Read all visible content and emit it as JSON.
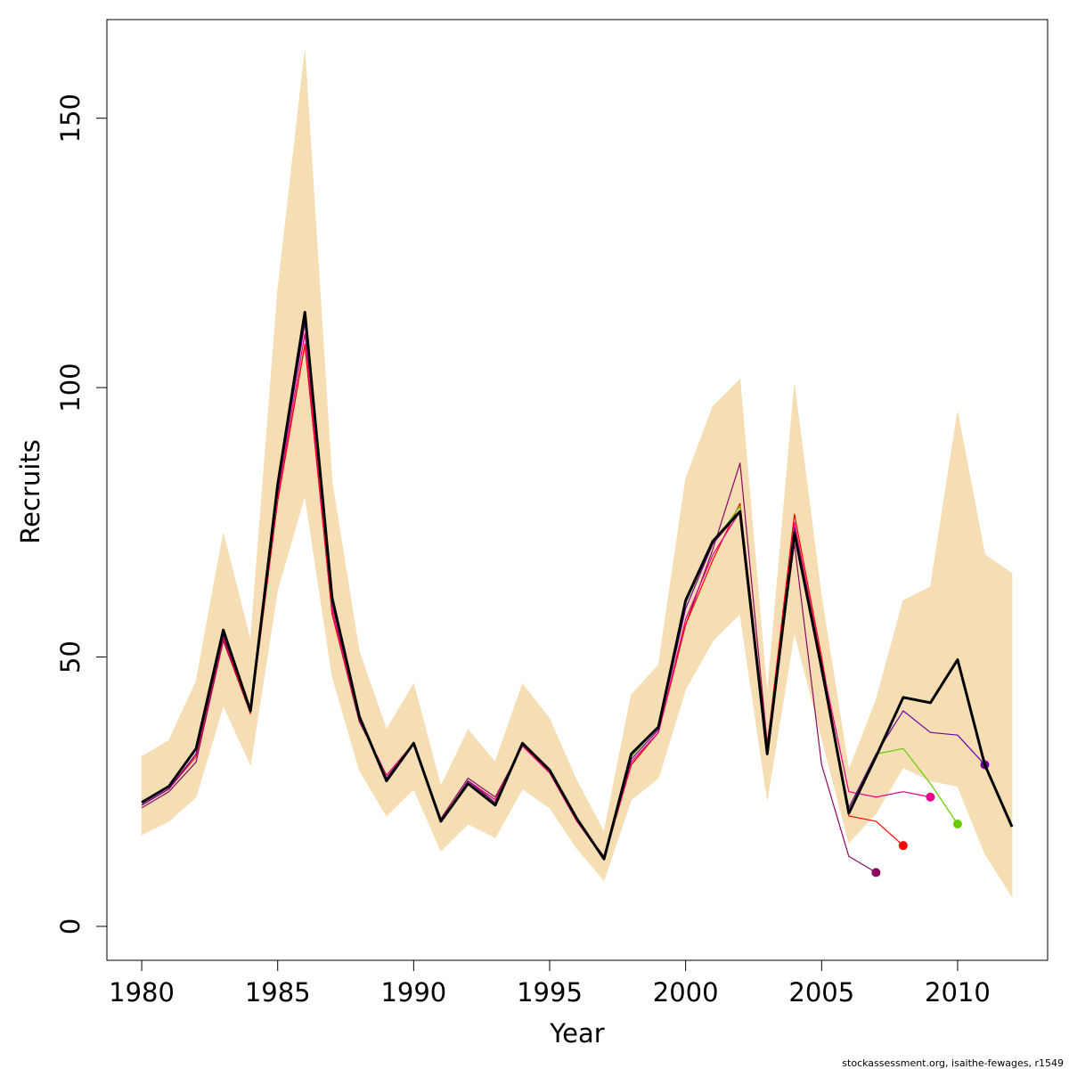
{
  "chart_data": {
    "type": "line",
    "x_label": "Year",
    "y_label": "Recruits",
    "footnote": "stockassessment.org, isaithe-fewages, r1549",
    "x": [
      1980,
      1981,
      1982,
      1983,
      1984,
      1985,
      1986,
      1987,
      1988,
      1989,
      1990,
      1991,
      1992,
      1993,
      1994,
      1995,
      1996,
      1997,
      1998,
      1999,
      2000,
      2001,
      2002,
      2003,
      2004,
      2005,
      2006,
      2007,
      2008,
      2009,
      2010,
      2011,
      2012
    ],
    "band": {
      "color": "#f5deb3",
      "upper": [
        31.5,
        34.5,
        45.5,
        73,
        53,
        118,
        162.5,
        82.5,
        51,
        36.5,
        45,
        26,
        36.5,
        30.5,
        45,
        38.5,
        27,
        17.5,
        43,
        48.5,
        83,
        96.5,
        101.5,
        43,
        100.5,
        61,
        29,
        42,
        60.5,
        63,
        95.5,
        69,
        65.5
      ],
      "lower": [
        17,
        19.5,
        24,
        41,
        30,
        62.5,
        80,
        46.5,
        29,
        20.5,
        25.5,
        14,
        19,
        16.5,
        25.5,
        22,
        14.5,
        8.5,
        23.5,
        27.5,
        44,
        53,
        58,
        23.5,
        54.5,
        35,
        15.5,
        21,
        29.5,
        27,
        26,
        13.5,
        5.5
      ]
    },
    "series": [
      {
        "color": "#000000",
        "values": [
          23,
          26,
          33,
          55,
          40,
          82,
          114,
          61,
          39,
          27,
          34,
          19.5,
          26.5,
          22.5,
          34,
          29,
          20,
          12.5,
          32,
          37,
          60.5,
          71.5,
          77,
          32,
          73,
          48,
          21,
          31.5,
          42.5,
          41.5,
          49.5,
          30,
          18.5
        ]
      },
      {
        "color": "#7000a0",
        "values": [
          22.5,
          25.5,
          32,
          54,
          40,
          81,
          112,
          60,
          38.5,
          27.5,
          34,
          19.5,
          27,
          23,
          34,
          29,
          20,
          12.5,
          31,
          36.5,
          59,
          71,
          77,
          33,
          74,
          47,
          22,
          32,
          40,
          36,
          35.5,
          30,
          null
        ]
      },
      {
        "color": "#66cc00",
        "values": [
          23,
          26,
          33,
          54.5,
          40,
          82,
          114,
          61,
          39,
          27.5,
          34,
          19.5,
          26.5,
          23,
          34,
          29,
          20,
          12.5,
          31.5,
          37,
          60,
          71,
          78,
          32.5,
          74,
          47.5,
          22,
          32,
          33,
          26.5,
          19,
          null,
          null
        ]
      },
      {
        "color": "#e8008a",
        "values": [
          22.5,
          25.5,
          32,
          54,
          40,
          80,
          110,
          59,
          38.5,
          28,
          34,
          19.5,
          27,
          23.5,
          33.5,
          28.5,
          19.5,
          12.5,
          30.5,
          36,
          57,
          69,
          77,
          33,
          75,
          49,
          25,
          24,
          25,
          24,
          null,
          null,
          null
        ]
      },
      {
        "color": "#ff0000",
        "values": [
          22.5,
          25.5,
          31.5,
          53.5,
          39.5,
          79,
          108,
          58,
          38.5,
          28,
          34,
          19.5,
          27,
          23.5,
          33.5,
          28.5,
          19.5,
          12.5,
          30,
          36,
          56,
          68,
          78.5,
          33.5,
          76.5,
          50,
          20.5,
          19.5,
          15,
          null,
          null,
          null,
          null
        ]
      },
      {
        "color": "#8b0a60",
        "values": [
          22,
          25,
          30.5,
          53,
          39.5,
          79,
          108,
          58,
          38,
          28,
          34,
          20,
          27.5,
          24,
          33.5,
          28.5,
          19.5,
          13,
          30,
          36,
          56,
          70,
          86,
          34,
          71,
          30,
          13,
          10,
          null,
          null,
          null,
          null,
          null
        ]
      }
    ],
    "xlim": [
      1978.72,
      2013.31
    ],
    "ylim": [
      -6.3,
      168.3
    ],
    "xticks": [
      1980,
      1985,
      1990,
      1995,
      2000,
      2005,
      2010
    ],
    "yticks": [
      0,
      50,
      100,
      150
    ]
  }
}
